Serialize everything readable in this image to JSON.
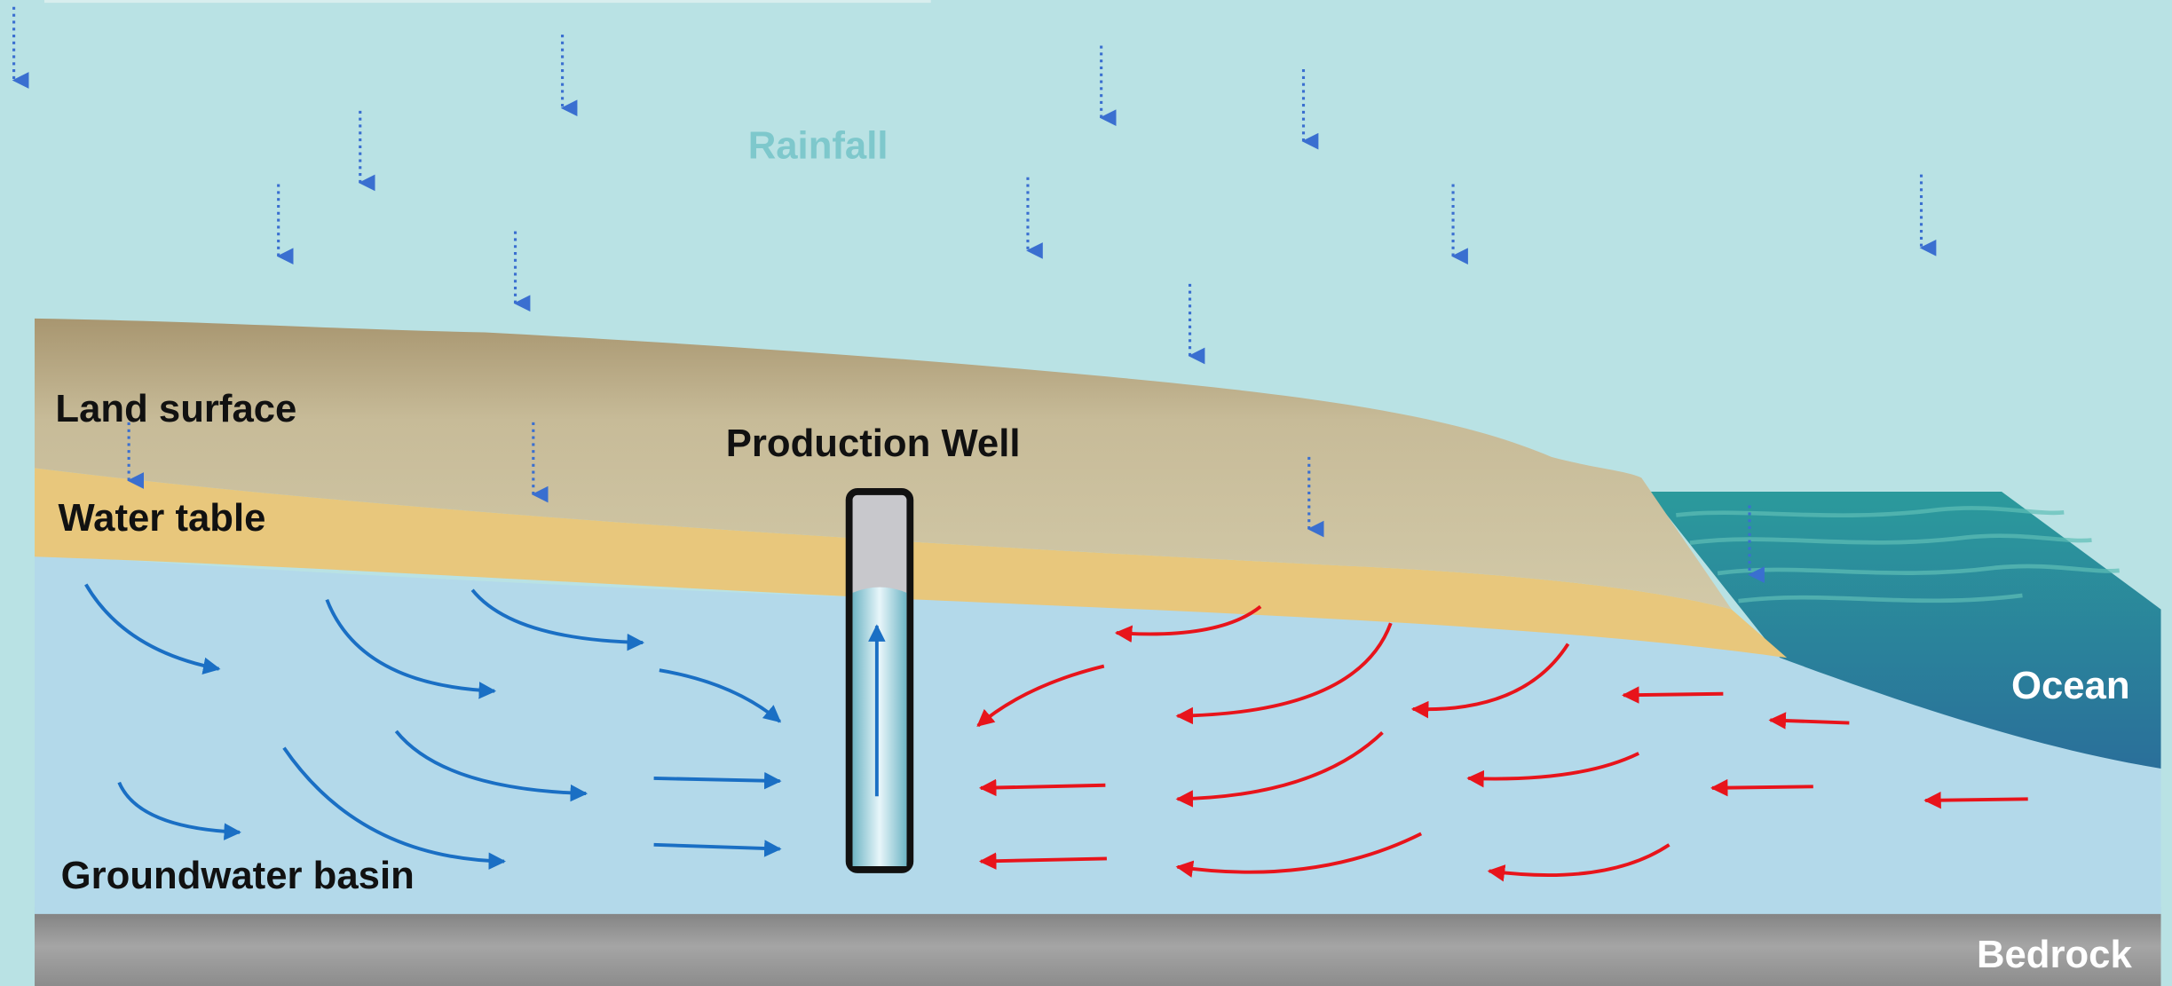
{
  "labels": {
    "rainfall": "Rainfall",
    "land_surface": "Land surface",
    "water_table": "Water table",
    "production_well": "Production Well",
    "groundwater_basin": "Groundwater basin",
    "ocean": "Ocean",
    "bedrock": "Bedrock"
  }
}
